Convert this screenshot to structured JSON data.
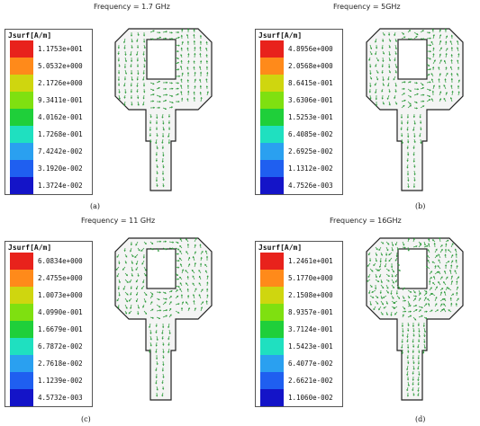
{
  "legend_title": "Jsurf[A/m]",
  "colors": [
    "#e8221c",
    "#ff8a1a",
    "#cfd60f",
    "#7fe010",
    "#1fcf3a",
    "#1fe0c0",
    "#2aa0f0",
    "#1f5ff0",
    "#1414c8"
  ],
  "arrow_color": "#2c9a3a",
  "panels": [
    {
      "frequency": "Frequency = 1.7 GHz",
      "tag": "(a)",
      "values": [
        "1.1753e+001",
        "5.0532e+000",
        "2.1726e+000",
        "9.3411e-001",
        "4.0162e-001",
        "1.7268e-001",
        "7.4242e-002",
        "3.1920e-002",
        "1.3724e-002"
      ]
    },
    {
      "frequency": "Frequency = 5GHz",
      "tag": "(b)",
      "values": [
        "4.8956e+000",
        "2.0568e+000",
        "8.6415e-001",
        "3.6306e-001",
        "1.5253e-001",
        "6.4085e-002",
        "2.6925e-002",
        "1.1312e-002",
        "4.7526e-003"
      ]
    },
    {
      "frequency": "Frequency = 11 GHz",
      "tag": "(c)",
      "values": [
        "6.0834e+000",
        "2.4755e+000",
        "1.0073e+000",
        "4.0990e-001",
        "1.6679e-001",
        "6.7872e-002",
        "2.7618e-002",
        "1.1239e-002",
        "4.5732e-003"
      ]
    },
    {
      "frequency": "Frequency = 16GHz",
      "tag": "(d)",
      "values": [
        "1.2461e+001",
        "5.1770e+000",
        "2.1508e+000",
        "8.9357e-001",
        "3.7124e-001",
        "1.5423e-001",
        "6.4077e-002",
        "2.6621e-002",
        "1.1060e-002"
      ]
    }
  ]
}
